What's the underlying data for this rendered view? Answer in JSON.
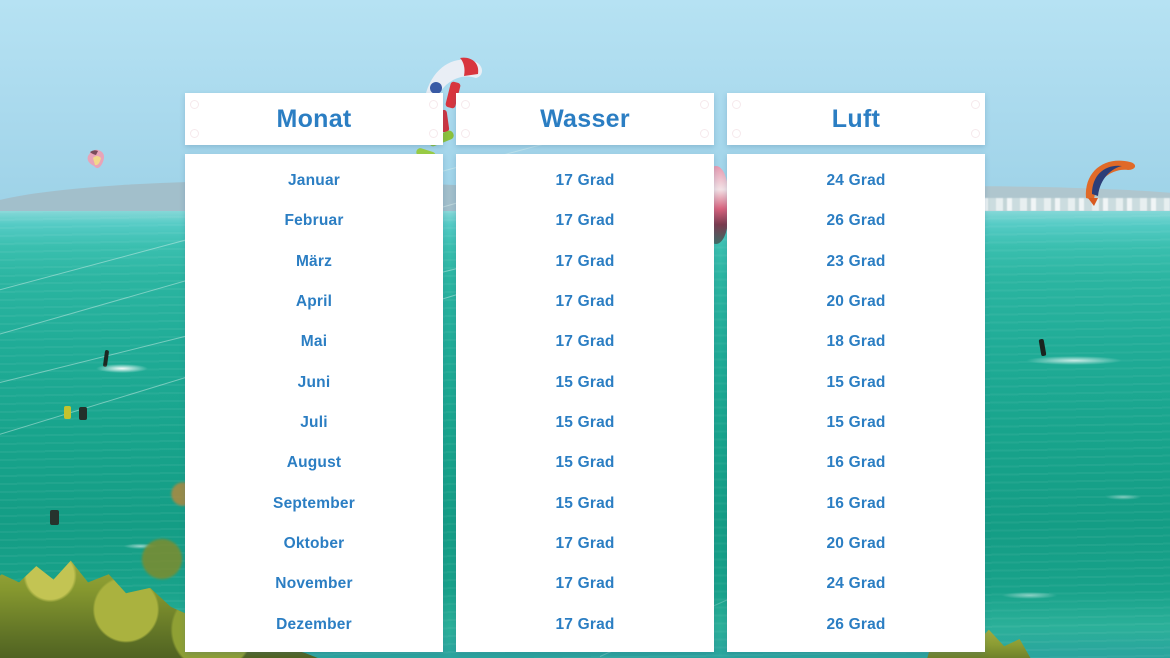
{
  "slide": {
    "table": {
      "columns": [
        {
          "header": "Monat",
          "rows": [
            "Januar",
            "Februar",
            "März",
            "April",
            "Mai",
            "Juni",
            "Juli",
            "August",
            "September",
            "Oktober",
            "November",
            "Dezember"
          ]
        },
        {
          "header": "Wasser",
          "rows": [
            "17 Grad",
            "17 Grad",
            "17 Grad",
            "17 Grad",
            "17 Grad",
            "15 Grad",
            "15 Grad",
            "15 Grad",
            "15 Grad",
            "17 Grad",
            "17 Grad",
            "17 Grad"
          ]
        },
        {
          "header": "Luft",
          "rows": [
            "24 Grad",
            "26 Grad",
            "23 Grad",
            "20 Grad",
            "18 Grad",
            "15 Grad",
            "15 Grad",
            "16 Grad",
            "16 Grad",
            "20 Grad",
            "24 Grad",
            "26 Grad"
          ]
        }
      ]
    },
    "colors": {
      "text_blue": "#2b7ec3",
      "panel_white": "#ffffff",
      "sky_blue": "#a9d9ed",
      "sea_teal": "#18a48c",
      "bush_green": "#86982f"
    },
    "background_elements": [
      "sky",
      "distant-hills",
      "white-town-on-horizon",
      "turquoise-lagoon",
      "kites",
      "kitesurfers",
      "foliage"
    ]
  }
}
